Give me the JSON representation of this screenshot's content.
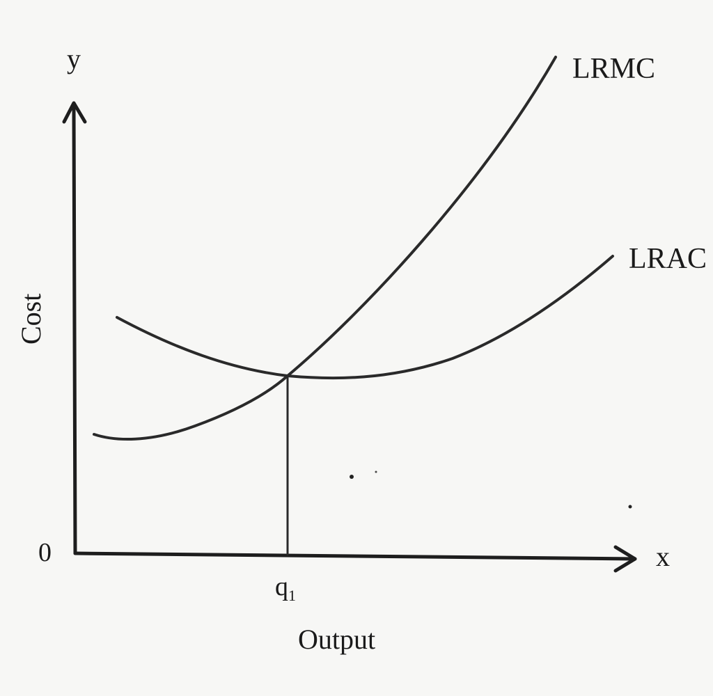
{
  "diagram": {
    "y_axis_letter": "y",
    "x_axis_letter": "x",
    "origin_label": "0",
    "y_axis_title": "Cost",
    "x_axis_title": "Output",
    "quantity_label": "q",
    "quantity_subscript": "1",
    "curves": [
      {
        "name": "LRMC",
        "label": "LRMC"
      },
      {
        "name": "LRAC",
        "label": "LRAC"
      }
    ]
  }
}
